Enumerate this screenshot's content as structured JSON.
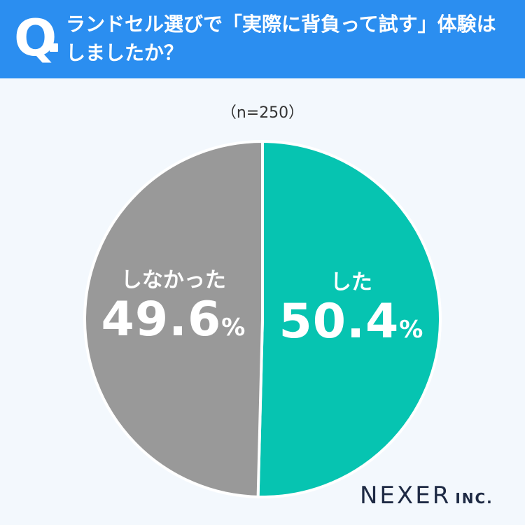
{
  "header": {
    "q_mark": "Q",
    "question": "ランドセル選びで「実際に背負って試す」体験は\nしましたか？",
    "background_color": "#2b8ef0"
  },
  "chart_data": {
    "type": "pie",
    "sample_label": "（n=250）",
    "slices": [
      {
        "label": "した",
        "value": 50.4,
        "value_text": "50.4",
        "unit": "%",
        "color": "#06c4b1"
      },
      {
        "label": "しなかった",
        "value": 49.6,
        "value_text": "49.6",
        "unit": "%",
        "color": "#999999"
      }
    ],
    "start_angle_deg": 0,
    "direction": "clockwise"
  },
  "logo": {
    "main": "NEXER",
    "suffix": "INC."
  }
}
